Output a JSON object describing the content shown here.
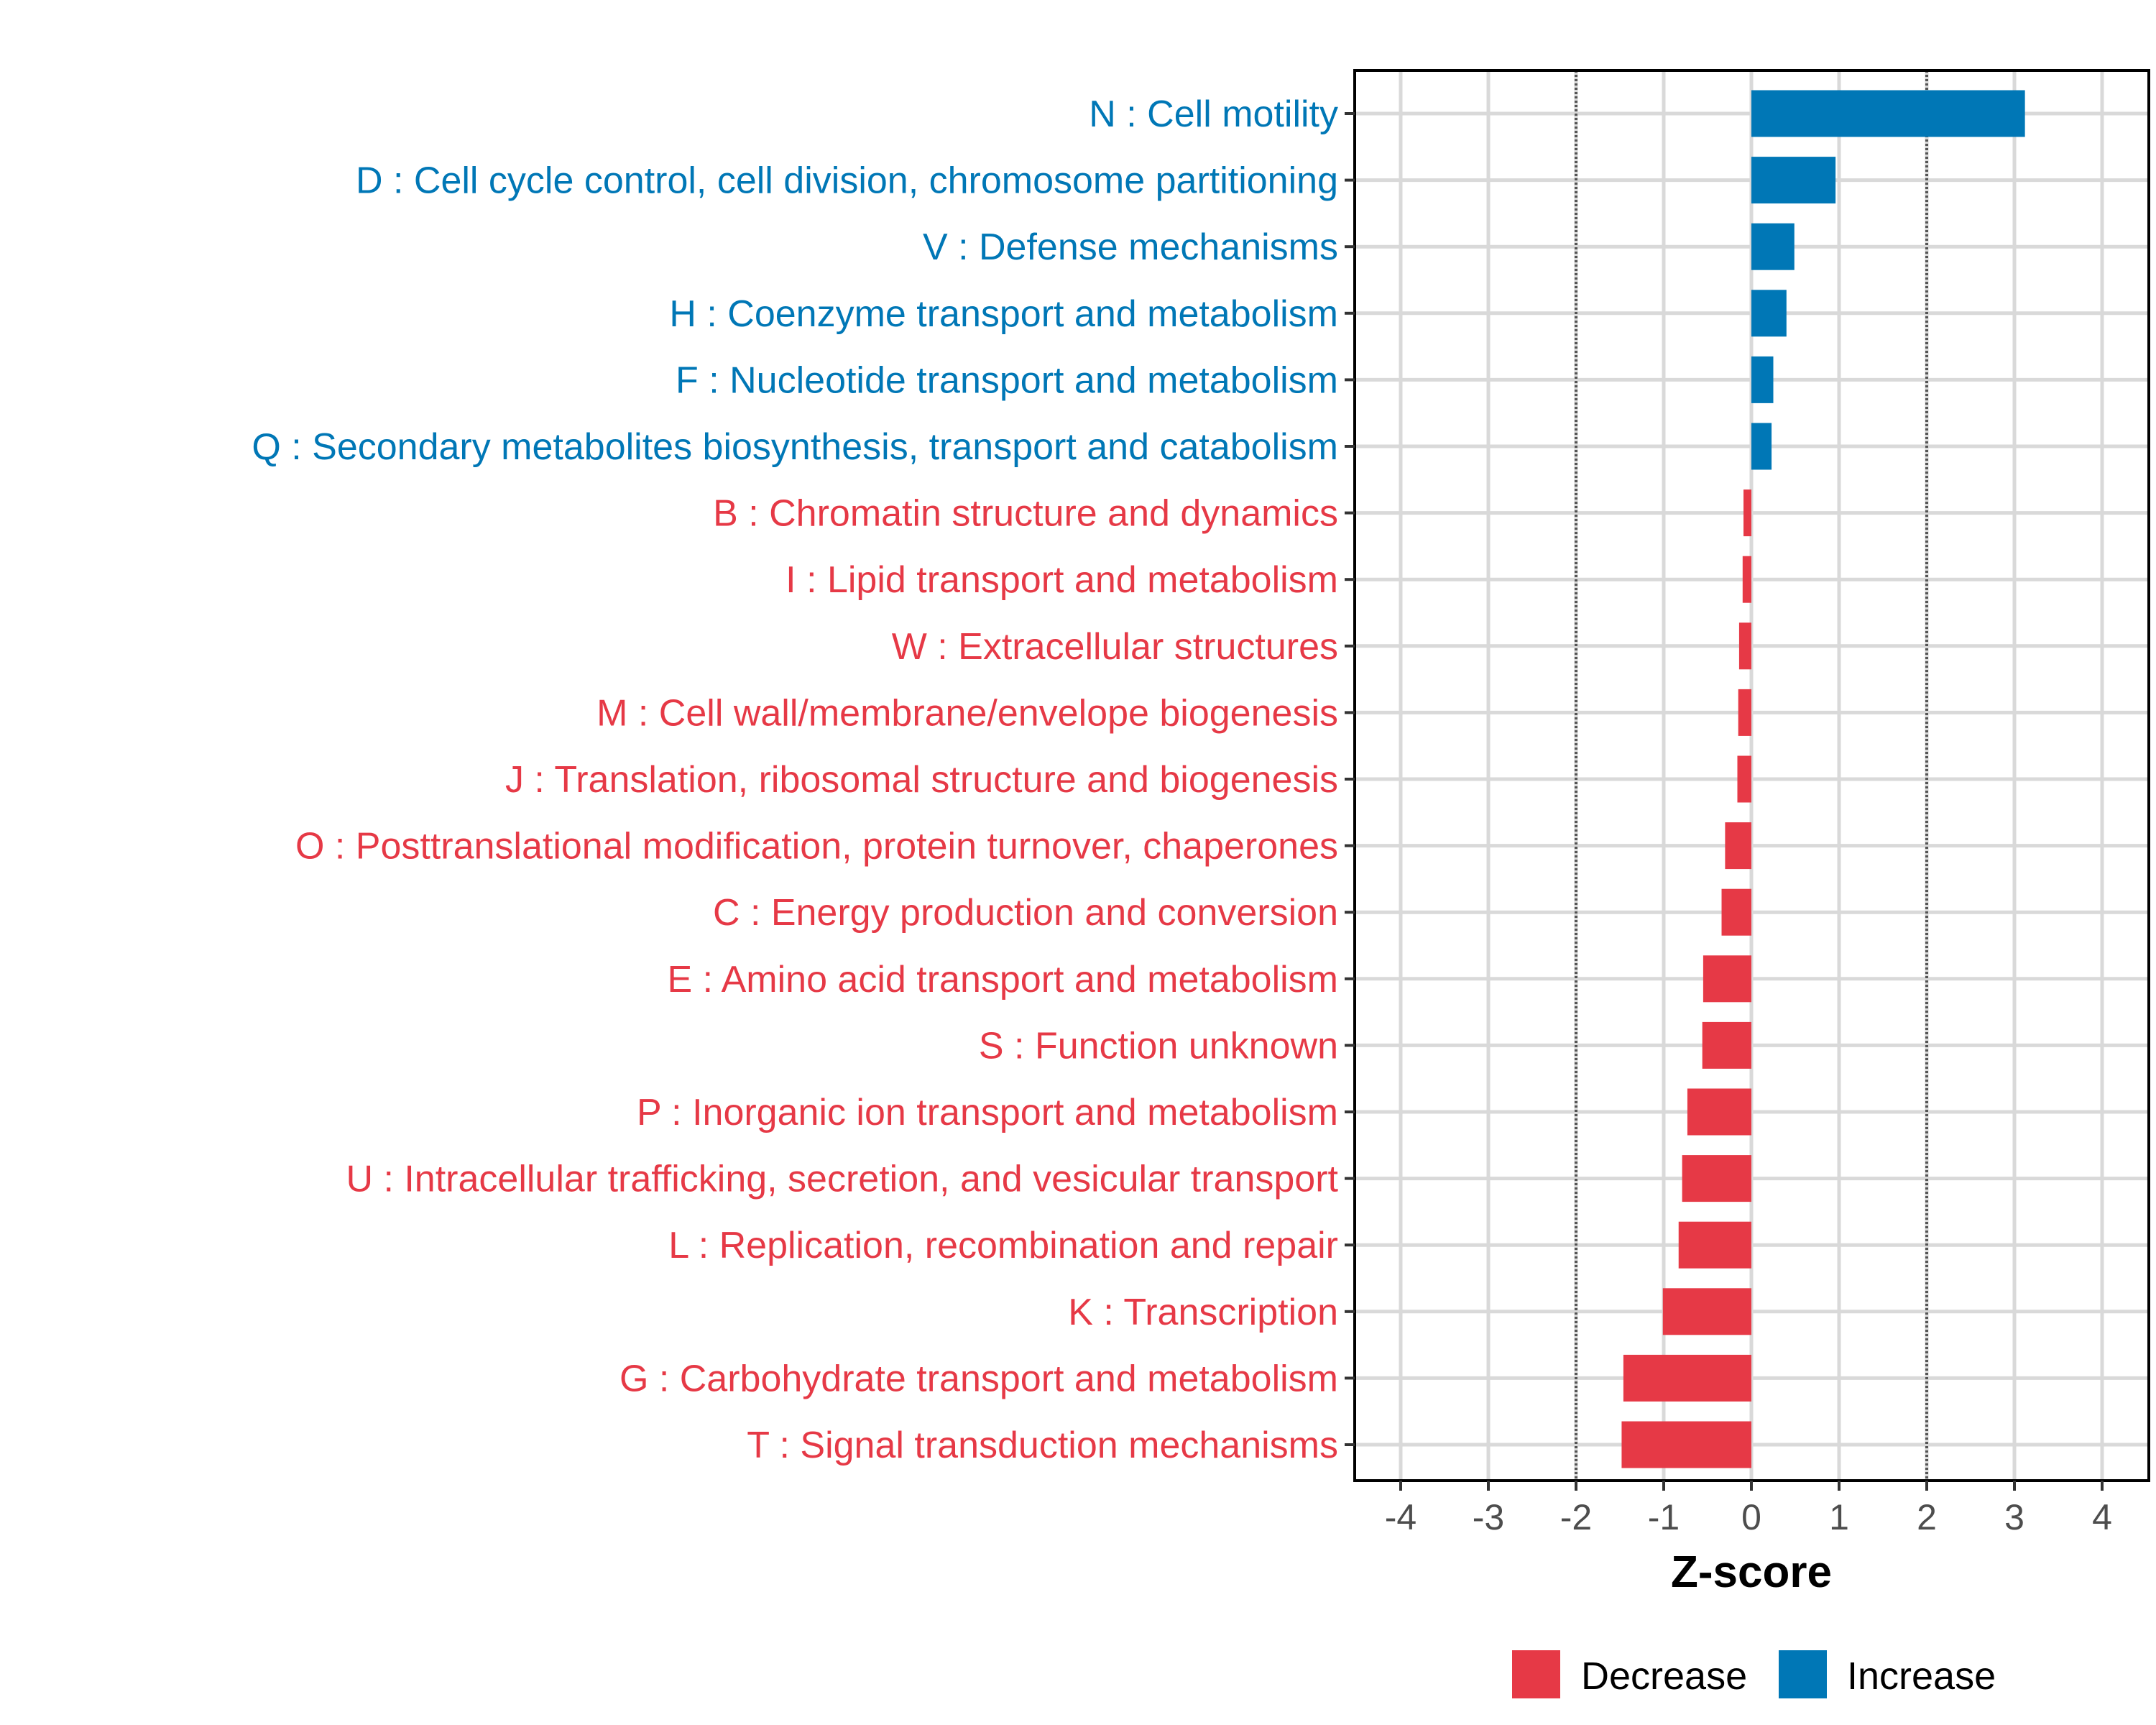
{
  "chart_data": {
    "type": "bar",
    "orientation": "horizontal",
    "title": "",
    "xlabel": "Z-score",
    "ylabel": "",
    "xlim": [
      -4.5,
      4.5
    ],
    "xticks": [
      -4,
      -3,
      -2,
      -1,
      0,
      1,
      2,
      3,
      4
    ],
    "reference_lines": [
      -2,
      2
    ],
    "grid": true,
    "legend": {
      "placement": "bottom",
      "entries": [
        {
          "label": "Decrease",
          "color": "#E63946"
        },
        {
          "label": "Increase",
          "color": "#0077B6"
        }
      ]
    },
    "categories": [
      "N : Cell motility",
      "D : Cell cycle control, cell division, chromosome partitioning",
      "V : Defense mechanisms",
      "H : Coenzyme transport and metabolism",
      "F : Nucleotide transport and metabolism",
      "Q : Secondary metabolites biosynthesis, transport and catabolism",
      "B : Chromatin structure and dynamics",
      "I : Lipid transport and metabolism",
      "W : Extracellular structures",
      "M : Cell wall/membrane/envelope biogenesis",
      "J : Translation, ribosomal structure and biogenesis",
      "O : Posttranslational modification, protein turnover, chaperones",
      "C : Energy production and conversion",
      "E : Amino acid transport and metabolism",
      "S : Function unknown",
      "P : Inorganic ion transport and metabolism",
      "U : Intracellular trafficking, secretion, and vesicular transport",
      "L : Replication, recombination and repair",
      "K : Transcription",
      "G : Carbohydrate transport and metabolism",
      "T : Signal transduction mechanisms"
    ],
    "values": [
      3.12,
      0.96,
      0.49,
      0.4,
      0.25,
      0.23,
      -0.09,
      -0.1,
      -0.14,
      -0.15,
      -0.16,
      -0.3,
      -0.34,
      -0.55,
      -0.56,
      -0.73,
      -0.79,
      -0.83,
      -1.01,
      -1.46,
      -1.48
    ],
    "colors": {
      "increase": "#0077B6",
      "decrease": "#E63946"
    }
  }
}
